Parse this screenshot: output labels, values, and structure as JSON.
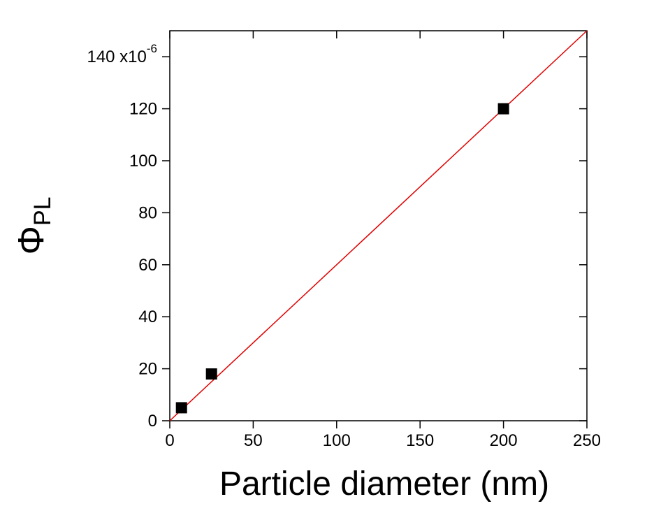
{
  "chart_data": {
    "type": "scatter",
    "xlabel": "Particle diameter (nm)",
    "ylabel": {
      "symbol": "Φ",
      "subscript": "PL"
    },
    "series": [
      {
        "color": "#000000",
        "marker": "square",
        "x": [
          7,
          25,
          200
        ],
        "values": [
          5,
          18,
          120
        ]
      }
    ],
    "fit_line": {
      "color": "#e00000",
      "x": [
        0,
        250
      ],
      "values": [
        0,
        150
      ]
    },
    "xlim": [
      0,
      250
    ],
    "xticks": [
      0,
      50,
      100,
      150,
      200,
      250
    ],
    "ylim": [
      0,
      150
    ],
    "yticks": [
      0,
      20,
      40,
      60,
      80,
      100,
      120,
      {
        "value": 140,
        "label": "140 x10",
        "superscript": "-6"
      }
    ],
    "grid": false
  }
}
